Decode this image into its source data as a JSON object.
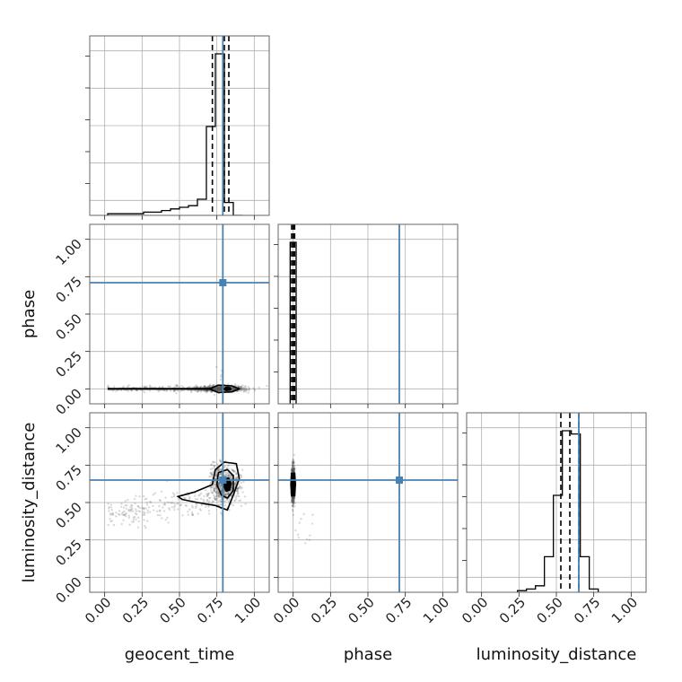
{
  "colors": {
    "truth": "#4682b4",
    "histogram": "#000000",
    "grid": "#b0b0b0",
    "samples": "#555555"
  },
  "chart_data": {
    "type": "corner",
    "parameters": [
      "geocent_time",
      "phase",
      "luminosity_distance"
    ],
    "ticks": [
      "0.00",
      "0.25",
      "0.50",
      "0.75",
      "1.00"
    ],
    "range": [
      -0.1,
      1.1
    ],
    "truths": {
      "geocent_time": 0.79,
      "phase": 0.71,
      "luminosity_distance": 0.65
    },
    "quantiles": {
      "geocent_time": [
        0.72,
        0.8,
        0.83
      ],
      "phase": [
        -0.01,
        0.0,
        0.01
      ],
      "luminosity_distance": [
        0.53,
        0.59,
        0.65
      ]
    },
    "histograms": {
      "geocent_time": {
        "edges": [
          0.02,
          0.08,
          0.14,
          0.2,
          0.26,
          0.32,
          0.38,
          0.44,
          0.5,
          0.56,
          0.62,
          0.68,
          0.74,
          0.8,
          0.86,
          0.92
        ],
        "counts": [
          0.01,
          0.01,
          0.01,
          0.01,
          0.02,
          0.02,
          0.03,
          0.04,
          0.05,
          0.06,
          0.1,
          0.55,
          1.0,
          0.08,
          0.0
        ]
      },
      "phase": {
        "edges": [
          -0.02,
          0.0,
          0.02
        ],
        "counts": [
          1.0,
          1.0
        ]
      },
      "luminosity_distance": {
        "edges": [
          0.24,
          0.3,
          0.36,
          0.42,
          0.48,
          0.54,
          0.6,
          0.66,
          0.72,
          0.78
        ],
        "counts": [
          0.01,
          0.02,
          0.04,
          0.22,
          0.6,
          1.0,
          0.98,
          0.22,
          0.02
        ]
      }
    },
    "samples": {
      "geocent_time__phase": {
        "x_mean": 0.78,
        "x_spread": 0.08,
        "x_tail_min": 0.02,
        "y_mean": 0.0,
        "y_spread": 0.01,
        "y_outlier_max": 0.15
      },
      "geocent_time__luminosity_distance": {
        "x_mean": 0.8,
        "x_spread": 0.05,
        "x_tail_min": 0.02,
        "y_mean": 0.62,
        "y_spread": 0.06
      },
      "phase__luminosity_distance": {
        "x_mean": 0.0,
        "x_spread": 0.005,
        "y_mean": 0.62,
        "y_spread": 0.06,
        "y_outlier_min": 0.22
      }
    },
    "grid": true
  }
}
